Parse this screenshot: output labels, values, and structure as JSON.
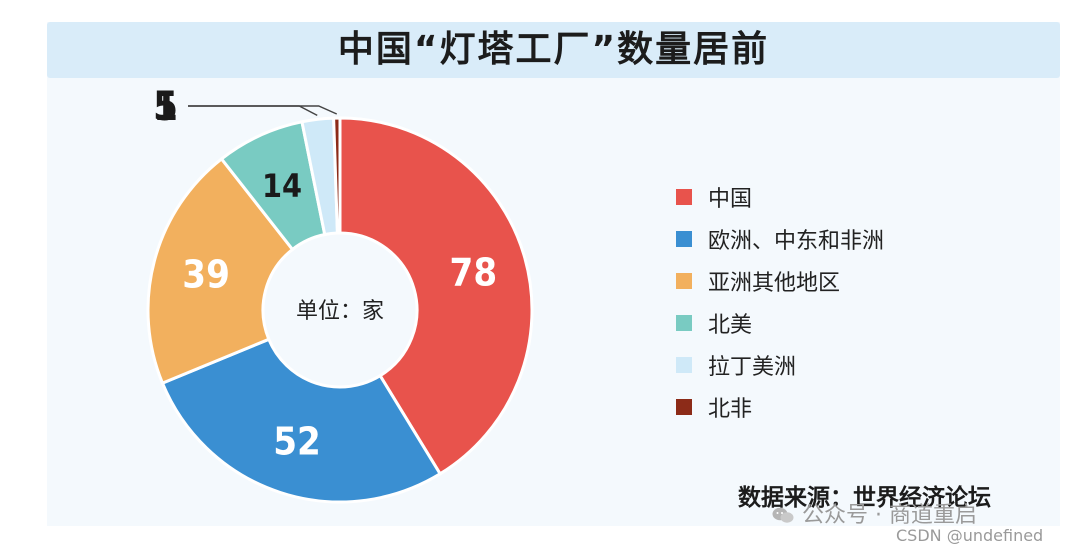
{
  "header": {
    "title": "中国“灯塔工厂”数量居前"
  },
  "chart_data": {
    "type": "pie",
    "variant": "donut",
    "title": "中国“灯塔工厂”数量居前",
    "center_label": "单位：家",
    "categories": [
      "中国",
      "欧洲、中东和非洲",
      "亚洲其他地区",
      "北美",
      "拉丁美洲",
      "北非"
    ],
    "values": [
      78,
      52,
      39,
      14,
      5,
      1
    ],
    "data_labels": [
      "78",
      "52",
      "39",
      "14",
      "5",
      "1"
    ],
    "colors": [
      "#e8534c",
      "#3a8fd2",
      "#f2b05e",
      "#79cbc2",
      "#cfe9f8",
      "#8c2b18"
    ],
    "legend_position": "right",
    "source": "数据来源：世界经济论坛"
  },
  "watermarks": {
    "wechat": "公众号 · 商道重启",
    "csdn": "CSDN @undefined"
  }
}
